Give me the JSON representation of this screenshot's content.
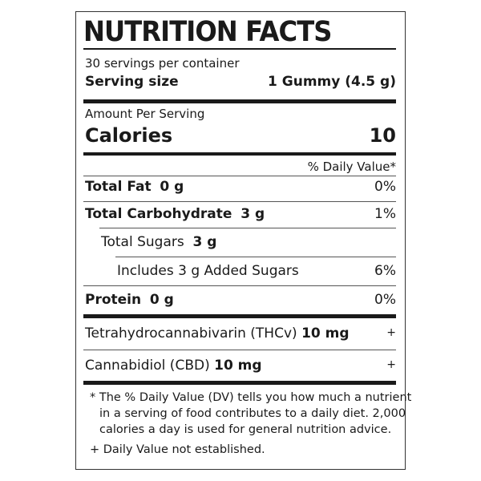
{
  "title": "NUTRITION FACTS",
  "servings": "30 servings per container",
  "serving_size": {
    "label": "Serving size",
    "value": "1 Gummy (4.5 g)"
  },
  "amount_per_serving": "Amount Per Serving",
  "calories": {
    "label": "Calories",
    "value": "10"
  },
  "dv_header": "% Daily Value*",
  "rows": [
    {
      "label": "Total Fat",
      "amount": "0 g",
      "dv": "0%"
    },
    {
      "label": "Total Carbohydrate",
      "amount": "3 g",
      "dv": "1%"
    },
    {
      "label": "Total Sugars",
      "amount": "3 g",
      "dv": ""
    },
    {
      "label": "Includes 3 g Added Sugars",
      "amount": "",
      "dv": "6%"
    },
    {
      "label": "Protein",
      "amount": "0 g",
      "dv": "0%"
    }
  ],
  "extras": [
    {
      "label": "Tetrahydrocannabivarin (THCv)",
      "amount": "10 mg",
      "mark": "+"
    },
    {
      "label": "Cannabidiol (CBD)",
      "amount": "10 mg",
      "mark": "+"
    }
  ],
  "footnotes": {
    "line1": "* The % Daily Value (DV) tells you how much a nutrient",
    "line2": "in a serving of food contributes to a daily diet. 2,000",
    "line3": "calories a day is used for general nutrition advice.",
    "line4": "+ Daily Value not established."
  }
}
